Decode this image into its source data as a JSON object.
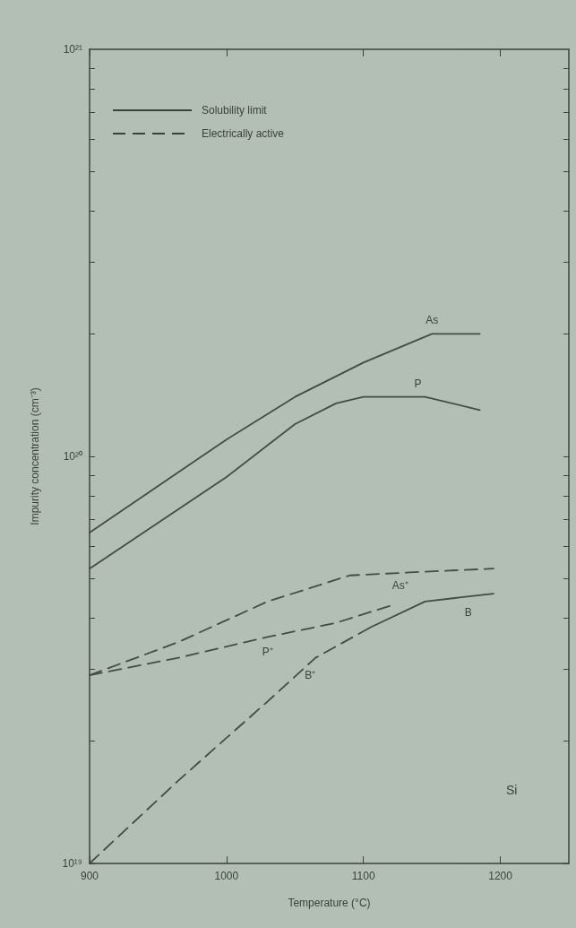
{
  "chart_data": {
    "type": "line",
    "xlabel": "Temperature (°C)",
    "ylabel": "Impurity concentration (cm⁻³)",
    "annotations": [
      "Solubility limit",
      "Electrically active",
      "Si"
    ],
    "xlim": [
      900,
      1250
    ],
    "xticks": [
      900,
      1000,
      1100,
      1200
    ],
    "ylim": [
      1e+19,
      1e+21
    ],
    "log": true,
    "yticks": [
      {
        "value": 1e+19,
        "label": "10¹⁹"
      },
      {
        "value": 2e+19,
        "label": null
      },
      {
        "value": 3e+19,
        "label": null
      },
      {
        "value": 4e+19,
        "label": null
      },
      {
        "value": 5e+19,
        "label": null
      },
      {
        "value": 6e+19,
        "label": null
      },
      {
        "value": 7e+19,
        "label": null
      },
      {
        "value": 8e+19,
        "label": null
      },
      {
        "value": 9e+19,
        "label": null
      },
      {
        "value": 1e+20,
        "label": "10²⁰"
      },
      {
        "value": 2e+20,
        "label": null
      },
      {
        "value": 3e+20,
        "label": null
      },
      {
        "value": 4e+20,
        "label": null
      },
      {
        "value": 5e+20,
        "label": null
      },
      {
        "value": 6e+20,
        "label": null
      },
      {
        "value": 7e+20,
        "label": null
      },
      {
        "value": 8e+20,
        "label": null
      },
      {
        "value": 9e+20,
        "label": null
      },
      {
        "value": 1e+21,
        "label": "10²¹"
      }
    ],
    "grid": false,
    "legend": false,
    "marker": "none",
    "series": [
      {
        "name": "As",
        "color": "#454a46",
        "line_style": "solid",
        "x": [
          900,
          1000,
          1050,
          1100,
          1150,
          1185
        ],
        "values": [
          6.5e+19,
          1.1e+20,
          1.4e+20,
          1.7e+20,
          2e+20,
          2e+20
        ]
      },
      {
        "name": "P",
        "color": "#454a46",
        "line_style": "solid",
        "x": [
          900,
          1000,
          1050,
          1080,
          1100,
          1145,
          1185
        ],
        "values": [
          5.3e+19,
          8.9e+19,
          1.2e+20,
          1.35e+20,
          1.4e+20,
          1.4e+20,
          1.3e+20
        ]
      },
      {
        "name": "As⁺",
        "color": "#454a46",
        "line_style": "dashed",
        "x": [
          900,
          965,
          1030,
          1090,
          1140,
          1195
        ],
        "values": [
          2.9e+19,
          3.5e+19,
          4.4e+19,
          5.1e+19,
          5.2e+19,
          5.3e+19
        ]
      },
      {
        "name": "P⁺",
        "color": "#454a46",
        "line_style": "dashed",
        "x": [
          900,
          965,
          1030,
          1080,
          1120
        ],
        "values": [
          2.9e+19,
          3.2e+19,
          3.6e+19,
          3.9e+19,
          4.3e+19
        ]
      },
      {
        "name": "B",
        "color": "#454a46",
        "line_style": "solid",
        "x": [
          1105,
          1145,
          1170,
          1195
        ],
        "values": [
          3.8e+19,
          4.4e+19,
          4.5e+19,
          4.6e+19
        ]
      },
      {
        "name": "B⁺",
        "color": "#454a46",
        "line_style": "dashed",
        "x": [
          900,
          965,
          1030,
          1065,
          1105
        ],
        "values": [
          1e+19,
          1.6e+19,
          2.5e+19,
          3.2e+19,
          3.8e+19
        ]
      }
    ]
  }
}
